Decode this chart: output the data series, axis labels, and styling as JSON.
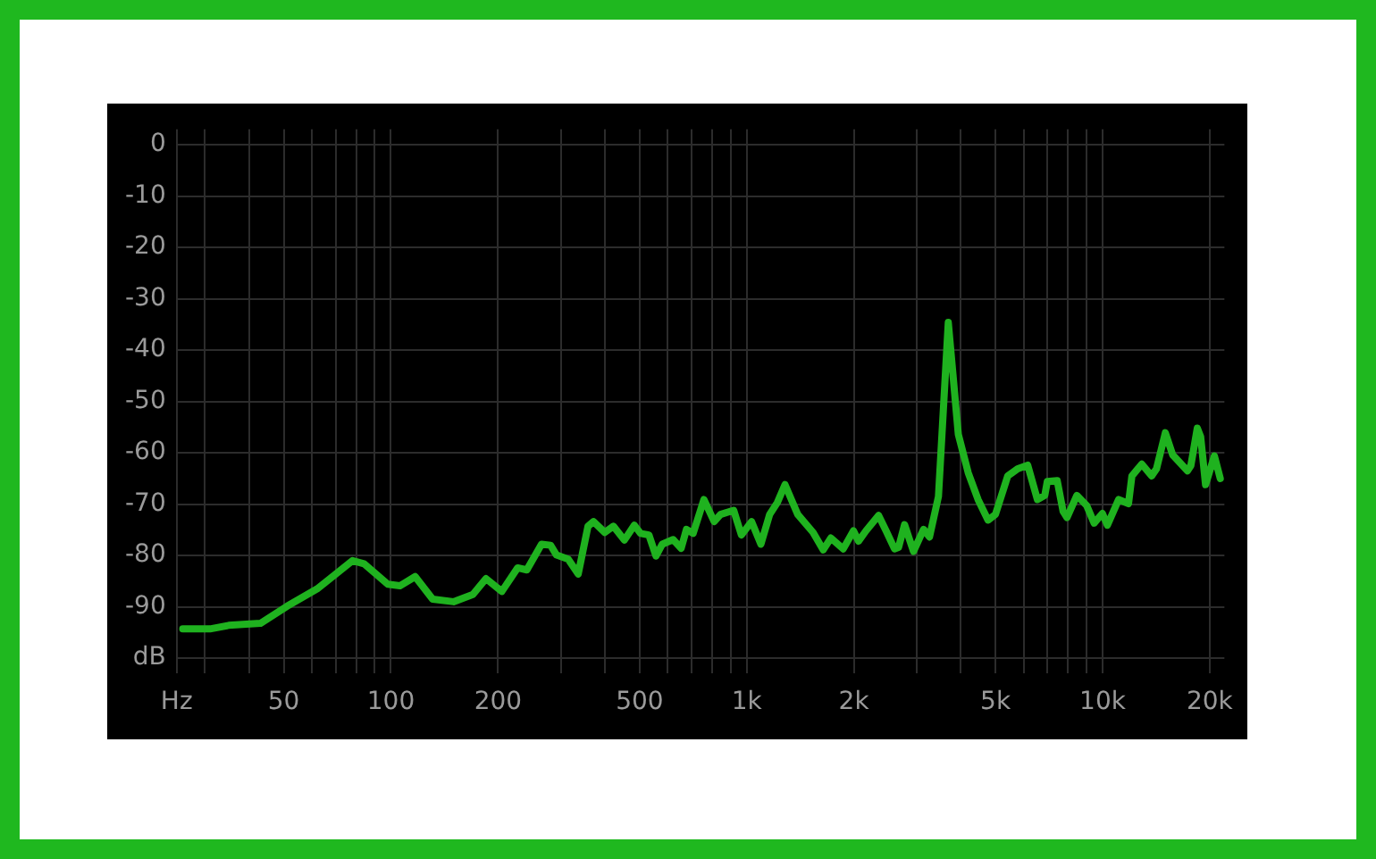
{
  "chart_data": {
    "type": "line",
    "log": "x",
    "grid": true,
    "legend": false,
    "xlim": [
      25,
      22000
    ],
    "ylim": [
      -103,
      3
    ],
    "xticks": [
      {
        "value": 25,
        "label": "Hz"
      },
      {
        "value": 30,
        "label": null
      },
      {
        "value": 40,
        "label": null
      },
      50,
      {
        "value": 60,
        "label": null
      },
      {
        "value": 70,
        "label": null
      },
      {
        "value": 80,
        "label": null
      },
      {
        "value": 90,
        "label": null
      },
      100,
      200,
      {
        "value": 300,
        "label": null
      },
      {
        "value": 400,
        "label": null
      },
      500,
      {
        "value": 600,
        "label": null
      },
      {
        "value": 700,
        "label": null
      },
      {
        "value": 800,
        "label": null
      },
      {
        "value": 900,
        "label": null
      },
      {
        "value": 1000,
        "label": "1k"
      },
      {
        "value": 2000,
        "label": "2k"
      },
      {
        "value": 3000,
        "label": null
      },
      {
        "value": 4000,
        "label": null
      },
      {
        "value": 5000,
        "label": "5k"
      },
      {
        "value": 6000,
        "label": null
      },
      {
        "value": 7000,
        "label": null
      },
      {
        "value": 8000,
        "label": null
      },
      {
        "value": 9000,
        "label": null
      },
      {
        "value": 10000,
        "label": "10k"
      },
      {
        "value": 20000,
        "label": "20k"
      }
    ],
    "yticks": [
      0,
      -10,
      -20,
      -30,
      -40,
      -50,
      -60,
      -70,
      -80,
      -90,
      {
        "value": -100,
        "label": "dB"
      }
    ],
    "series": [
      {
        "color": "#1fb21f",
        "x": [
          26,
          31,
          35,
          43,
          51,
          62,
          70,
          78,
          84,
          98,
          106,
          117,
          131,
          150,
          170,
          185,
          205,
          227,
          241,
          265,
          281,
          292,
          315,
          336,
          358,
          371,
          399,
          422,
          453,
          483,
          503,
          531,
          556,
          579,
          621,
          654,
          677,
          707,
          758,
          810,
          844,
          919,
          966,
          1032,
          1096,
          1160,
          1219,
          1281,
          1391,
          1536,
          1640,
          1723,
          1868,
          1995,
          2061,
          2163,
          2347,
          2464,
          2602,
          2671,
          2777,
          2942,
          3140,
          3263,
          3458,
          3685,
          3932,
          4193,
          4468,
          4766,
          5000,
          5414,
          5775,
          6159,
          6559,
          6880,
          6993,
          7456,
          7747,
          7943,
          8467,
          9028,
          9469,
          9990,
          10318,
          11096,
          11828,
          12091,
          12889,
          13738,
          14177,
          15012,
          15744,
          17320,
          17705,
          18461,
          18870,
          19472,
          20615,
          21415
        ],
        "values": [
          -94.3,
          -94.3,
          -93.6,
          -93.2,
          -89.9,
          -86.5,
          -83.6,
          -81,
          -81.6,
          -85.6,
          -85.9,
          -84.1,
          -88.5,
          -89,
          -87.6,
          -84.5,
          -87,
          -82.4,
          -82.8,
          -77.8,
          -78,
          -79.9,
          -80.7,
          -83.6,
          -74.3,
          -73.4,
          -75.5,
          -74.3,
          -77,
          -74.1,
          -75.7,
          -76,
          -80.1,
          -77.8,
          -76.9,
          -78.6,
          -74.9,
          -75.7,
          -69.1,
          -73.4,
          -72,
          -71.2,
          -76,
          -73.4,
          -77.8,
          -72,
          -69.7,
          -66.2,
          -72,
          -75.5,
          -78.9,
          -76.6,
          -78.7,
          -75.2,
          -77.2,
          -75.2,
          -72.2,
          -75.2,
          -78.7,
          -78.4,
          -74,
          -79.2,
          -74.9,
          -76.4,
          -68.5,
          -34.6,
          -56.4,
          -63.9,
          -69.1,
          -73.1,
          -72,
          -64.5,
          -63.1,
          -62.4,
          -69.1,
          -68.3,
          -65.6,
          -65.4,
          -71.4,
          -72.6,
          -68.3,
          -70.3,
          -73.7,
          -71.8,
          -74.1,
          -69.1,
          -69.9,
          -64.5,
          -62.2,
          -64.5,
          -63.1,
          -56.1,
          -60.4,
          -63.5,
          -62.5,
          -55.2,
          -56.9,
          -66.2,
          -60.6,
          -65
        ]
      }
    ]
  }
}
